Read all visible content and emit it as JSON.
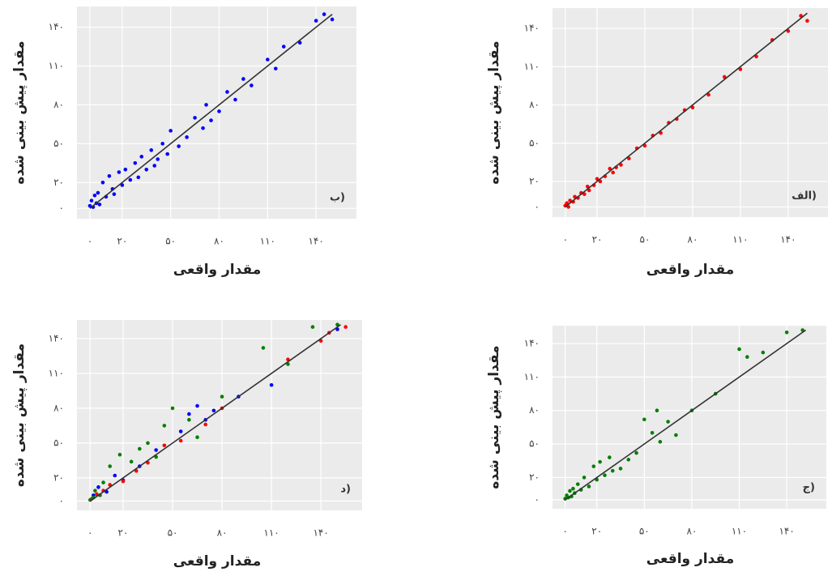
{
  "chart_data": [
    {
      "type": "scatter",
      "panel_label": "ب)",
      "x_label": "مقدار واقعی",
      "y_label": "مقدار پیش بینی شده",
      "xlim": [
        -8,
        165
      ],
      "ylim": [
        -8,
        156
      ],
      "grid": true,
      "xticks": [
        {
          "value": 0,
          "label": "۰"
        },
        {
          "value": 20,
          "label": "۲۰"
        },
        {
          "value": 50,
          "label": "۵۰"
        },
        {
          "value": 80,
          "label": "۸۰"
        },
        {
          "value": 110,
          "label": "۱۱۰"
        },
        {
          "value": 140,
          "label": "۱۴۰"
        }
      ],
      "yticks": [
        {
          "value": 0,
          "label": "۰"
        },
        {
          "value": 20,
          "label": "۲۰"
        },
        {
          "value": 50,
          "label": "۵۰"
        },
        {
          "value": 80,
          "label": "۸۰"
        },
        {
          "value": 110,
          "label": "۱۱۰"
        },
        {
          "value": 140,
          "label": "۱۴۰"
        }
      ],
      "line": {
        "x": [
          0,
          150
        ],
        "values": [
          0,
          150
        ],
        "color": "#333333"
      },
      "series": [
        {
          "color": "#0000ff",
          "x": [
            0,
            1,
            2,
            3,
            4,
            5,
            6,
            8,
            10,
            12,
            14,
            15,
            18,
            20,
            22,
            25,
            28,
            30,
            32,
            35,
            38,
            40,
            42,
            45,
            48,
            50,
            55,
            60,
            65,
            70,
            72,
            75,
            80,
            85,
            90,
            95,
            100,
            110,
            115,
            120,
            130,
            140,
            145,
            150
          ],
          "values": [
            2,
            6,
            1,
            10,
            4,
            12,
            3,
            20,
            9,
            25,
            15,
            11,
            28,
            18,
            30,
            22,
            35,
            24,
            40,
            30,
            45,
            33,
            38,
            50,
            42,
            60,
            48,
            55,
            70,
            62,
            80,
            68,
            75,
            90,
            84,
            100,
            95,
            115,
            108,
            125,
            128,
            145,
            150,
            146
          ]
        }
      ]
    },
    {
      "type": "scatter",
      "panel_label": "الف)",
      "x_label": "مقدار واقعی",
      "y_label": "مقدار پیش بینی شده",
      "xlim": [
        -8,
        165
      ],
      "ylim": [
        -8,
        156
      ],
      "grid": true,
      "xticks": [
        {
          "value": 0,
          "label": "۰"
        },
        {
          "value": 20,
          "label": "۲۰"
        },
        {
          "value": 50,
          "label": "۵۰"
        },
        {
          "value": 80,
          "label": "۸۰"
        },
        {
          "value": 110,
          "label": "۱۱۰"
        },
        {
          "value": 140,
          "label": "۱۴۰"
        }
      ],
      "yticks": [
        {
          "value": 0,
          "label": "۰"
        },
        {
          "value": 20,
          "label": "۲۰"
        },
        {
          "value": 50,
          "label": "۵۰"
        },
        {
          "value": 80,
          "label": "۸۰"
        },
        {
          "value": 110,
          "label": "۱۱۰"
        },
        {
          "value": 140,
          "label": "۱۴۰"
        }
      ],
      "line": {
        "x": [
          0,
          152
        ],
        "values": [
          0,
          152
        ],
        "color": "#333333"
      },
      "series": [
        {
          "color": "#ff0000",
          "x": [
            0,
            1,
            2,
            3,
            5,
            6,
            8,
            10,
            12,
            14,
            15,
            18,
            20,
            22,
            25,
            28,
            30,
            32,
            35,
            40,
            45,
            50,
            55,
            60,
            65,
            70,
            75,
            80,
            90,
            100,
            110,
            120,
            130,
            140,
            148,
            152
          ],
          "values": [
            1,
            3,
            0,
            5,
            4,
            8,
            7,
            11,
            10,
            16,
            13,
            17,
            22,
            20,
            24,
            30,
            27,
            31,
            33,
            38,
            46,
            48,
            56,
            58,
            66,
            69,
            76,
            78,
            88,
            102,
            108,
            118,
            131,
            138,
            150,
            146
          ]
        }
      ]
    },
    {
      "type": "scatter",
      "panel_label": "د)",
      "x_label": "مقدار واقعی",
      "y_label": "مقدار پیش بینی شده",
      "xlim": [
        -8,
        165
      ],
      "ylim": [
        -8,
        156
      ],
      "grid": true,
      "xticks": [
        {
          "value": 0,
          "label": "۰"
        },
        {
          "value": 20,
          "label": "۲۰"
        },
        {
          "value": 50,
          "label": "۵۰"
        },
        {
          "value": 80,
          "label": "۸۰"
        },
        {
          "value": 110,
          "label": "۱۱۰"
        },
        {
          "value": 140,
          "label": "۱۴۰"
        }
      ],
      "yticks": [
        {
          "value": 0,
          "label": "۰"
        },
        {
          "value": 20,
          "label": "۲۰"
        },
        {
          "value": 50,
          "label": "۵۰"
        },
        {
          "value": 80,
          "label": "۸۰"
        },
        {
          "value": 110,
          "label": "۱۱۰"
        },
        {
          "value": 140,
          "label": "۱۴۰"
        }
      ],
      "line": {
        "x": [
          0,
          152
        ],
        "values": [
          0,
          152
        ],
        "color": "#333333"
      },
      "series": [
        {
          "color": "#0000ff",
          "x": [
            2,
            5,
            10,
            15,
            20,
            30,
            40,
            55,
            60,
            65,
            70,
            75,
            90,
            110,
            150
          ],
          "values": [
            5,
            12,
            8,
            22,
            18,
            30,
            44,
            60,
            75,
            82,
            70,
            78,
            90,
            100,
            148
          ]
        },
        {
          "color": "#ff0000",
          "x": [
            1,
            4,
            8,
            12,
            20,
            28,
            35,
            45,
            55,
            70,
            80,
            120,
            140,
            145,
            155
          ],
          "values": [
            2,
            6,
            9,
            14,
            17,
            26,
            33,
            48,
            52,
            66,
            80,
            122,
            138,
            145,
            150
          ]
        },
        {
          "color": "#008000",
          "x": [
            0,
            2,
            3,
            6,
            8,
            12,
            18,
            25,
            30,
            35,
            40,
            45,
            50,
            60,
            65,
            80,
            105,
            120,
            135,
            150
          ],
          "values": [
            1,
            3,
            9,
            5,
            16,
            30,
            40,
            34,
            45,
            50,
            38,
            65,
            80,
            70,
            55,
            90,
            132,
            118,
            150,
            152
          ]
        }
      ]
    },
    {
      "type": "scatter",
      "panel_label": "ج)",
      "x_label": "مقدار واقعی",
      "y_label": "مقدار پیش بینی شده",
      "xlim": [
        -8,
        165
      ],
      "ylim": [
        -8,
        156
      ],
      "grid": true,
      "xticks": [
        {
          "value": 0,
          "label": "۰"
        },
        {
          "value": 20,
          "label": "۲۰"
        },
        {
          "value": 50,
          "label": "۵۰"
        },
        {
          "value": 80,
          "label": "۸۰"
        },
        {
          "value": 110,
          "label": "۱۱۰"
        },
        {
          "value": 140,
          "label": "۱۴۰"
        }
      ],
      "yticks": [
        {
          "value": 0,
          "label": "۰"
        },
        {
          "value": 20,
          "label": "۲۰"
        },
        {
          "value": 50,
          "label": "۵۰"
        },
        {
          "value": 80,
          "label": "۸۰"
        },
        {
          "value": 110,
          "label": "۱۱۰"
        },
        {
          "value": 140,
          "label": "۱۴۰"
        }
      ],
      "line": {
        "x": [
          0,
          152
        ],
        "values": [
          0,
          152
        ],
        "color": "#333333"
      },
      "series": [
        {
          "color": "#008000",
          "x": [
            0,
            1,
            2,
            3,
            4,
            5,
            6,
            8,
            10,
            12,
            15,
            18,
            20,
            22,
            25,
            28,
            30,
            35,
            40,
            45,
            50,
            55,
            58,
            60,
            65,
            70,
            80,
            95,
            110,
            115,
            125,
            140,
            150
          ],
          "values": [
            1,
            4,
            2,
            8,
            3,
            10,
            6,
            14,
            9,
            20,
            12,
            30,
            18,
            34,
            22,
            38,
            26,
            28,
            36,
            42,
            72,
            60,
            80,
            52,
            70,
            58,
            80,
            95,
            135,
            128,
            132,
            150,
            152
          ]
        }
      ]
    }
  ]
}
